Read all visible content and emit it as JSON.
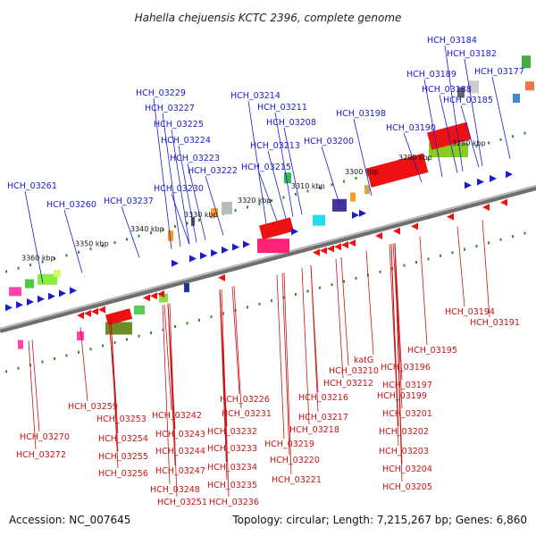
{
  "title": "Hahella chejuensis KCTC 2396, complete genome",
  "footer": {
    "accession": "Accession: NC_007645",
    "summary": "Topology: circular; Length: 7,215,267 bp; Genes: 6,860"
  },
  "kbp_labels": [
    "3360 kbp",
    "3350 kbp",
    "3340 kbp",
    "3330 kbp",
    "3320 kbp",
    "3310 kbp",
    "3300 kbp",
    "3290 kbp",
    "3280 kbp"
  ],
  "top_genes": [
    "HCH_03184",
    "HCH_03182",
    "HCH_03177",
    "HCH_03189",
    "HCH_03188",
    "HCH_03185",
    "HCH_03229",
    "HCH_03214",
    "HCH_03227",
    "HCH_03211",
    "HCH_03198",
    "HCH_03225",
    "HCH_03208",
    "HCH_03190",
    "HCH_03224",
    "HCH_03213",
    "HCH_03200",
    "HCH_03223",
    "HCH_03222",
    "HCH_03215",
    "HCH_03261",
    "HCH_03230",
    "HCH_03260",
    "HCH_03237"
  ],
  "bottom_genes": [
    "HCH_03194",
    "HCH_03191",
    "HCH_03195",
    "katG",
    "HCH_03196",
    "HCH_03210",
    "HCH_03212",
    "HCH_03197",
    "HCH_03199",
    "HCH_03226",
    "HCH_03216",
    "HCH_03259",
    "HCH_03231",
    "HCH_03201",
    "HCH_03253",
    "HCH_03242",
    "HCH_03217",
    "HCH_03243",
    "HCH_03232",
    "HCH_03218",
    "HCH_03202",
    "HCH_03270",
    "HCH_03254",
    "HCH_03219",
    "HCH_03233",
    "HCH_03244",
    "HCH_03203",
    "HCH_03255",
    "HCH_03272",
    "HCH_03220",
    "HCH_03247",
    "HCH_03234",
    "HCH_03204",
    "HCH_03256",
    "HCH_03235",
    "HCH_03221",
    "HCH_03248",
    "HCH_03205",
    "HCH_03251",
    "HCH_03236"
  ],
  "colors": {
    "top_label": "#1a1ad0",
    "bottom_label": "#c81414",
    "backbone": "#8a8a8a",
    "tick": "#2e8b2e"
  }
}
